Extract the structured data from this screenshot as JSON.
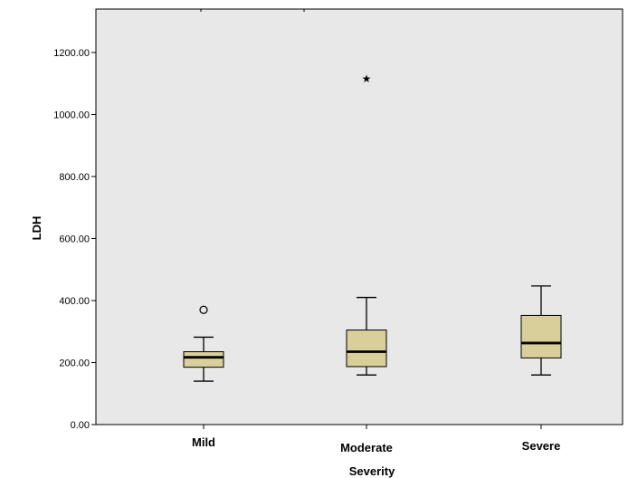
{
  "chart_data": {
    "type": "boxplot",
    "title": "",
    "xlabel": "Severity",
    "ylabel": "LDH",
    "ylim": [
      0,
      1300
    ],
    "yticks": [
      0,
      200,
      400,
      600,
      800,
      1000,
      1200
    ],
    "ytick_labels": [
      "0.00",
      "200.00",
      "400.00",
      "600.00",
      "800.00",
      "1000.00",
      "1200.00"
    ],
    "grid": false,
    "legend": false,
    "colors": {
      "plot_background": "#e8e8e8",
      "box_fill": "#d9cf9a",
      "stroke": "#000000"
    },
    "categories": [
      "Mild",
      "Moderate",
      "Severe"
    ],
    "boxes": [
      {
        "category": "Mild",
        "whisker_low": 140,
        "q1": 185,
        "median": 217,
        "q3": 235,
        "whisker_high": 282,
        "outliers": [
          {
            "value": 370,
            "marker": "circle"
          }
        ]
      },
      {
        "category": "Moderate",
        "whisker_low": 160,
        "q1": 187,
        "median": 235,
        "q3": 305,
        "whisker_high": 410,
        "outliers": [
          {
            "value": 1115,
            "marker": "star"
          }
        ]
      },
      {
        "category": "Severe",
        "whisker_low": 160,
        "q1": 215,
        "median": 263,
        "q3": 352,
        "whisker_high": 447,
        "outliers": []
      }
    ]
  }
}
